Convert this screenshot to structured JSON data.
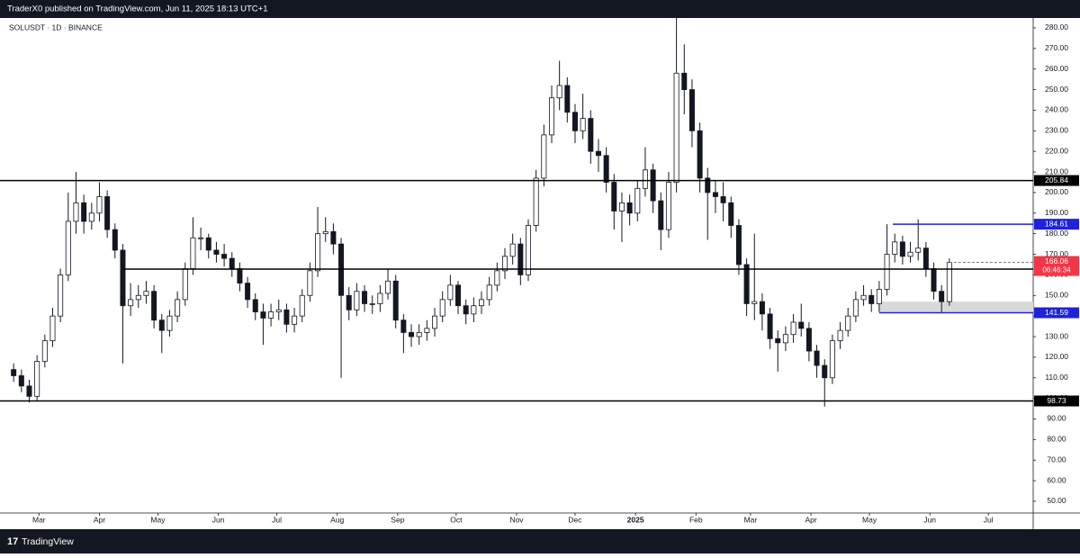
{
  "header": {
    "title": "TraderX0 published on TradingView.com, Jun 11, 2025 18:13 UTC+1"
  },
  "footer": {
    "brand": "TradingView"
  },
  "chart_data": {
    "type": "candlestick",
    "title": "SOLUSDT · 1D · BINANCE",
    "color": "#131722",
    "xlim": [
      9,
      539
    ],
    "xticks": [
      {
        "value": 29,
        "label": "Mar"
      },
      {
        "value": 60,
        "label": "Apr"
      },
      {
        "value": 90,
        "label": "May"
      },
      {
        "value": 121,
        "label": "Jun"
      },
      {
        "value": 151,
        "label": "Jul"
      },
      {
        "value": 182,
        "label": "Aug"
      },
      {
        "value": 213,
        "label": "Sep"
      },
      {
        "value": 243,
        "label": "Oct"
      },
      {
        "value": 274,
        "label": "Nov"
      },
      {
        "value": 304,
        "label": "Dec"
      },
      {
        "value": 335,
        "label": "2025"
      },
      {
        "value": 366,
        "label": "Feb"
      },
      {
        "value": 394,
        "label": "Mar"
      },
      {
        "value": 425,
        "label": "Apr"
      },
      {
        "value": 455,
        "label": "May"
      },
      {
        "value": 486,
        "label": "Jun"
      },
      {
        "value": 516,
        "label": "Jul"
      }
    ],
    "ylim": [
      44.3,
      284.8
    ],
    "yticks": [
      {
        "value": 50,
        "label": "50.00"
      },
      {
        "value": 60,
        "label": "60.00"
      },
      {
        "value": 70,
        "label": "70.00"
      },
      {
        "value": 80,
        "label": "80.00"
      },
      {
        "value": 90,
        "label": "90.00"
      },
      {
        "value": 100,
        "label": "100.00"
      },
      {
        "value": 110,
        "label": "110.00"
      },
      {
        "value": 120,
        "label": "120.00"
      },
      {
        "value": 130,
        "label": "130.00"
      },
      {
        "value": 140,
        "label": "140.00"
      },
      {
        "value": 150,
        "label": "150.00"
      },
      {
        "value": 160,
        "label": "160.00"
      },
      {
        "value": 170,
        "label": "170.00"
      },
      {
        "value": 180,
        "label": "180.00"
      },
      {
        "value": 190,
        "label": "190.00"
      },
      {
        "value": 200,
        "label": "200.00"
      },
      {
        "value": 210,
        "label": "210.00"
      },
      {
        "value": 220,
        "label": "220.00"
      },
      {
        "value": 230,
        "label": "230.00"
      },
      {
        "value": 240,
        "label": "240.00"
      },
      {
        "value": 250,
        "label": "250.00"
      },
      {
        "value": 260,
        "label": "260.00"
      },
      {
        "value": 270,
        "label": "270.00"
      },
      {
        "value": 280,
        "label": "280.00"
      }
    ],
    "x": [
      16,
      20,
      24,
      28,
      32,
      36,
      40,
      44,
      48,
      52,
      56,
      60,
      64,
      68,
      72,
      76,
      80,
      84,
      88,
      92,
      96,
      100,
      104,
      108,
      112,
      116,
      120,
      124,
      128,
      132,
      136,
      140,
      144,
      148,
      152,
      156,
      160,
      164,
      168,
      172,
      176,
      180,
      184,
      188,
      192,
      196,
      200,
      204,
      208,
      212,
      216,
      220,
      224,
      228,
      232,
      236,
      240,
      244,
      248,
      252,
      256,
      260,
      264,
      268,
      272,
      276,
      280,
      284,
      288,
      292,
      296,
      300,
      304,
      308,
      312,
      316,
      320,
      324,
      328,
      332,
      336,
      340,
      344,
      348,
      352,
      356,
      360,
      364,
      368,
      372,
      376,
      380,
      384,
      388,
      392,
      396,
      400,
      404,
      408,
      412,
      416,
      420,
      424,
      428,
      432,
      436,
      440,
      444,
      448,
      452,
      456,
      460,
      464,
      468,
      472,
      476,
      480,
      484,
      488,
      492,
      496
    ],
    "open": [
      114,
      111,
      106,
      101,
      118,
      128,
      140,
      160,
      186,
      195,
      186,
      190,
      198,
      182,
      172,
      145,
      148,
      150,
      152,
      138,
      133,
      140,
      148,
      163,
      178,
      178,
      172,
      170,
      168,
      163,
      156,
      148,
      142,
      139,
      142,
      143,
      136,
      140,
      150,
      162,
      180,
      181,
      175,
      150,
      143,
      152,
      146,
      146,
      151,
      157,
      138,
      132,
      130,
      132,
      134,
      140,
      148,
      155,
      145,
      141,
      145,
      148,
      155,
      162,
      169,
      175,
      160,
      184,
      207,
      228,
      246,
      252,
      239,
      230,
      236,
      220,
      218,
      205,
      191,
      195,
      190,
      202,
      211,
      196,
      182,
      205,
      258,
      250,
      230,
      207,
      200,
      198,
      195,
      184,
      165,
      146,
      147,
      141,
      129,
      127,
      131,
      137,
      134,
      123,
      116,
      110,
      128,
      133,
      140,
      148,
      150,
      146,
      153,
      170,
      176,
      169,
      171,
      173,
      163,
      152,
      147
    ],
    "high": [
      117,
      114,
      109,
      121,
      131,
      144,
      163,
      200,
      210,
      199,
      195,
      205,
      201,
      185,
      175,
      156,
      155,
      157,
      155,
      141,
      143,
      152,
      166,
      188,
      183,
      180,
      176,
      175,
      171,
      166,
      159,
      151,
      146,
      146,
      148,
      146,
      144,
      153,
      166,
      193,
      188,
      185,
      178,
      154,
      156,
      155,
      150,
      155,
      163,
      160,
      141,
      136,
      136,
      138,
      144,
      152,
      160,
      157,
      148,
      149,
      152,
      159,
      166,
      173,
      180,
      178,
      187,
      211,
      233,
      252,
      264,
      256,
      243,
      248,
      240,
      226,
      222,
      209,
      200,
      199,
      206,
      222,
      214,
      200,
      210,
      285,
      272,
      255,
      234,
      212,
      206,
      205,
      198,
      187,
      168,
      180,
      151,
      144,
      133,
      135,
      141,
      146,
      137,
      126,
      119,
      131,
      137,
      144,
      152,
      155,
      153,
      157,
      184.61,
      180,
      179,
      176,
      187,
      176,
      166,
      155,
      168
    ],
    "low": [
      108,
      103,
      98,
      99,
      115,
      125,
      137,
      157,
      180,
      180,
      182,
      186,
      178,
      168,
      117,
      140,
      144,
      146,
      134,
      122,
      130,
      137,
      145,
      160,
      172,
      168,
      166,
      164,
      159,
      152,
      144,
      138,
      126,
      135,
      138,
      132,
      132,
      137,
      147,
      159,
      176,
      170,
      110,
      138,
      140,
      142,
      141,
      142,
      148,
      134,
      122,
      125,
      126,
      128,
      130,
      137,
      145,
      141,
      136,
      137,
      141,
      145,
      152,
      158,
      165,
      155,
      157,
      181,
      203,
      224,
      240,
      234,
      224,
      226,
      214,
      210,
      200,
      182,
      176,
      184,
      186,
      198,
      190,
      172,
      178,
      200,
      238,
      222,
      200,
      177,
      190,
      186,
      178,
      160,
      140,
      138,
      133,
      124,
      113,
      123,
      127,
      130,
      118,
      110,
      96,
      107,
      124,
      130,
      137,
      145,
      142,
      142,
      150,
      166,
      165,
      166,
      167,
      159,
      148,
      141.59,
      145
    ],
    "close": [
      111,
      106,
      101,
      118,
      128,
      140,
      160,
      186,
      195,
      186,
      190,
      198,
      182,
      172,
      145,
      148,
      150,
      152,
      138,
      133,
      140,
      148,
      163,
      178,
      178,
      172,
      170,
      168,
      163,
      156,
      148,
      142,
      139,
      142,
      143,
      136,
      140,
      150,
      162,
      180,
      181,
      175,
      150,
      143,
      152,
      146,
      146,
      151,
      157,
      138,
      132,
      130,
      132,
      134,
      140,
      148,
      155,
      145,
      141,
      145,
      148,
      155,
      162,
      169,
      175,
      160,
      184,
      207,
      228,
      246,
      252,
      239,
      230,
      236,
      220,
      218,
      205,
      191,
      195,
      190,
      202,
      211,
      196,
      182,
      205,
      258,
      250,
      230,
      207,
      200,
      198,
      195,
      184,
      165,
      146,
      147,
      141,
      129,
      127,
      131,
      137,
      134,
      123,
      116,
      110,
      128,
      133,
      140,
      148,
      150,
      146,
      153,
      170,
      176,
      169,
      171,
      173,
      163,
      152,
      147,
      166
    ],
    "levels": [
      {
        "value": 205.84,
        "color": "#000000"
      },
      {
        "value": 184.61,
        "color": "#1e22d8",
        "from": 467
      },
      {
        "value": 162.8,
        "color": "#000000",
        "from": 72
      },
      {
        "value": 141.59,
        "color": "#1e22d8",
        "from": 460
      },
      {
        "value": 98.73,
        "color": "#000000"
      }
    ],
    "zone": {
      "low": 141.59,
      "high": 147,
      "from": 460,
      "color": "#d9d9d9"
    },
    "last": {
      "value": 166.06,
      "countdown": "06:46:34",
      "color": "#f23645"
    }
  }
}
